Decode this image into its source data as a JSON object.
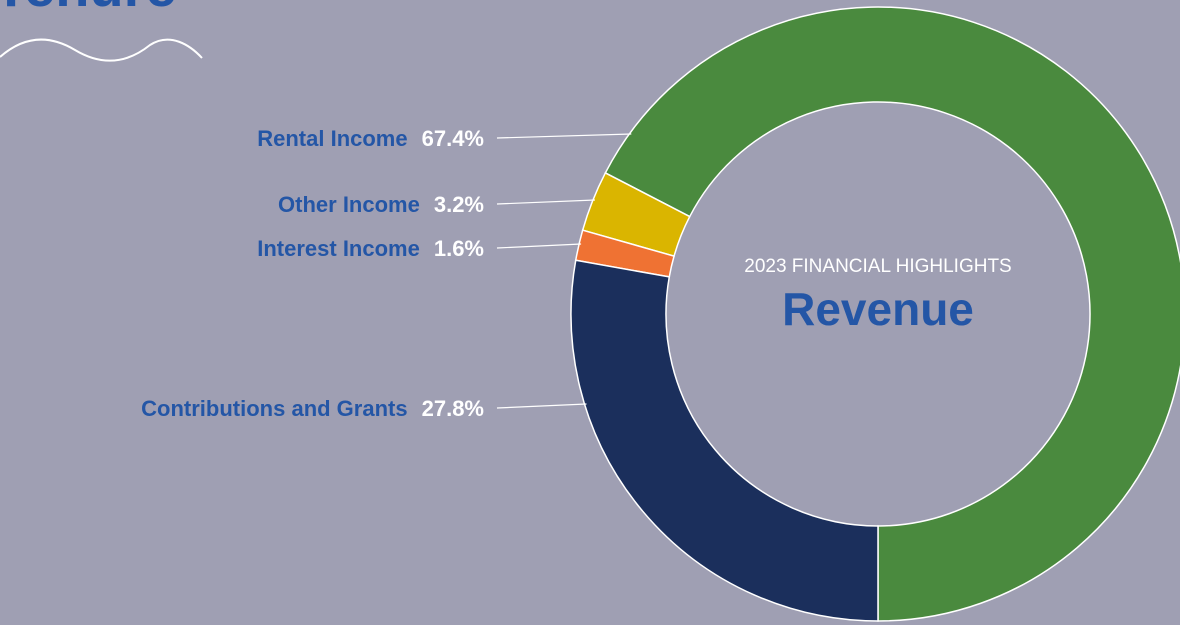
{
  "heading": "Tenure",
  "chart_data": {
    "type": "pie",
    "donut": true,
    "title": "Revenue",
    "subtitle": "2023 FINANCIAL HIGHLIGHTS",
    "categories": [
      "Rental Income",
      "Other Income",
      "Interest Income",
      "Contributions and Grants"
    ],
    "values": [
      67.4,
      3.2,
      1.6,
      27.8
    ],
    "value_labels": [
      "67.4%",
      "3.2%",
      "1.6%",
      "27.8%"
    ],
    "colors": [
      "#4a8a3e",
      "#dab500",
      "#ef7233",
      "#1b2f5c"
    ]
  }
}
